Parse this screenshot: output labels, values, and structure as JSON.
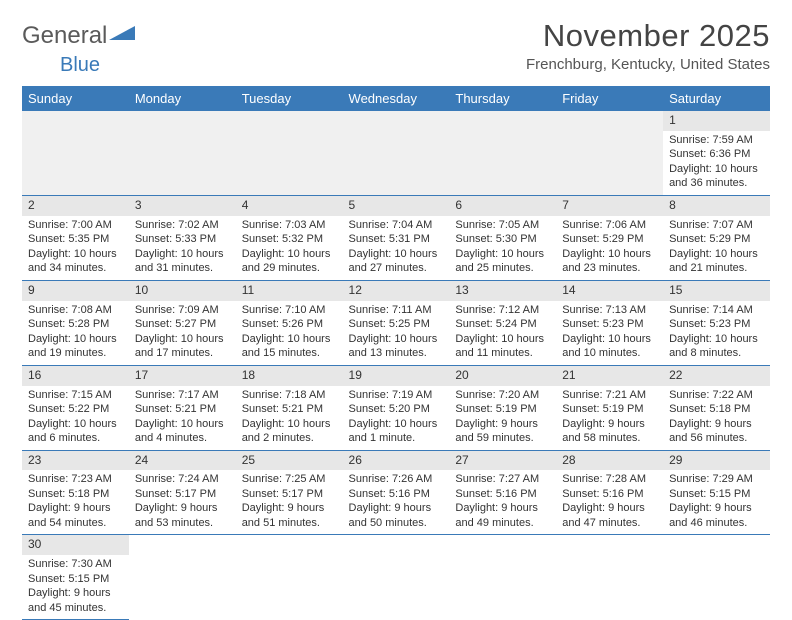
{
  "logo": {
    "text_a": "General",
    "text_b": "Blue",
    "triangle_color": "#3a7ab8"
  },
  "title": "November 2025",
  "location": "Frenchburg, Kentucky, United States",
  "colors": {
    "header_bg": "#3a7ab8",
    "header_fg": "#ffffff",
    "daynum_bg": "#e7e7e7",
    "rule": "#3a7ab8",
    "empty_row_bg": "#f0f0f0"
  },
  "day_headers": [
    "Sunday",
    "Monday",
    "Tuesday",
    "Wednesday",
    "Thursday",
    "Friday",
    "Saturday"
  ],
  "weeks": [
    [
      null,
      null,
      null,
      null,
      null,
      null,
      {
        "n": "1",
        "sr": "Sunrise: 7:59 AM",
        "ss": "Sunset: 6:36 PM",
        "dl": "Daylight: 10 hours and 36 minutes."
      }
    ],
    [
      {
        "n": "2",
        "sr": "Sunrise: 7:00 AM",
        "ss": "Sunset: 5:35 PM",
        "dl": "Daylight: 10 hours and 34 minutes."
      },
      {
        "n": "3",
        "sr": "Sunrise: 7:02 AM",
        "ss": "Sunset: 5:33 PM",
        "dl": "Daylight: 10 hours and 31 minutes."
      },
      {
        "n": "4",
        "sr": "Sunrise: 7:03 AM",
        "ss": "Sunset: 5:32 PM",
        "dl": "Daylight: 10 hours and 29 minutes."
      },
      {
        "n": "5",
        "sr": "Sunrise: 7:04 AM",
        "ss": "Sunset: 5:31 PM",
        "dl": "Daylight: 10 hours and 27 minutes."
      },
      {
        "n": "6",
        "sr": "Sunrise: 7:05 AM",
        "ss": "Sunset: 5:30 PM",
        "dl": "Daylight: 10 hours and 25 minutes."
      },
      {
        "n": "7",
        "sr": "Sunrise: 7:06 AM",
        "ss": "Sunset: 5:29 PM",
        "dl": "Daylight: 10 hours and 23 minutes."
      },
      {
        "n": "8",
        "sr": "Sunrise: 7:07 AM",
        "ss": "Sunset: 5:29 PM",
        "dl": "Daylight: 10 hours and 21 minutes."
      }
    ],
    [
      {
        "n": "9",
        "sr": "Sunrise: 7:08 AM",
        "ss": "Sunset: 5:28 PM",
        "dl": "Daylight: 10 hours and 19 minutes."
      },
      {
        "n": "10",
        "sr": "Sunrise: 7:09 AM",
        "ss": "Sunset: 5:27 PM",
        "dl": "Daylight: 10 hours and 17 minutes."
      },
      {
        "n": "11",
        "sr": "Sunrise: 7:10 AM",
        "ss": "Sunset: 5:26 PM",
        "dl": "Daylight: 10 hours and 15 minutes."
      },
      {
        "n": "12",
        "sr": "Sunrise: 7:11 AM",
        "ss": "Sunset: 5:25 PM",
        "dl": "Daylight: 10 hours and 13 minutes."
      },
      {
        "n": "13",
        "sr": "Sunrise: 7:12 AM",
        "ss": "Sunset: 5:24 PM",
        "dl": "Daylight: 10 hours and 11 minutes."
      },
      {
        "n": "14",
        "sr": "Sunrise: 7:13 AM",
        "ss": "Sunset: 5:23 PM",
        "dl": "Daylight: 10 hours and 10 minutes."
      },
      {
        "n": "15",
        "sr": "Sunrise: 7:14 AM",
        "ss": "Sunset: 5:23 PM",
        "dl": "Daylight: 10 hours and 8 minutes."
      }
    ],
    [
      {
        "n": "16",
        "sr": "Sunrise: 7:15 AM",
        "ss": "Sunset: 5:22 PM",
        "dl": "Daylight: 10 hours and 6 minutes."
      },
      {
        "n": "17",
        "sr": "Sunrise: 7:17 AM",
        "ss": "Sunset: 5:21 PM",
        "dl": "Daylight: 10 hours and 4 minutes."
      },
      {
        "n": "18",
        "sr": "Sunrise: 7:18 AM",
        "ss": "Sunset: 5:21 PM",
        "dl": "Daylight: 10 hours and 2 minutes."
      },
      {
        "n": "19",
        "sr": "Sunrise: 7:19 AM",
        "ss": "Sunset: 5:20 PM",
        "dl": "Daylight: 10 hours and 1 minute."
      },
      {
        "n": "20",
        "sr": "Sunrise: 7:20 AM",
        "ss": "Sunset: 5:19 PM",
        "dl": "Daylight: 9 hours and 59 minutes."
      },
      {
        "n": "21",
        "sr": "Sunrise: 7:21 AM",
        "ss": "Sunset: 5:19 PM",
        "dl": "Daylight: 9 hours and 58 minutes."
      },
      {
        "n": "22",
        "sr": "Sunrise: 7:22 AM",
        "ss": "Sunset: 5:18 PM",
        "dl": "Daylight: 9 hours and 56 minutes."
      }
    ],
    [
      {
        "n": "23",
        "sr": "Sunrise: 7:23 AM",
        "ss": "Sunset: 5:18 PM",
        "dl": "Daylight: 9 hours and 54 minutes."
      },
      {
        "n": "24",
        "sr": "Sunrise: 7:24 AM",
        "ss": "Sunset: 5:17 PM",
        "dl": "Daylight: 9 hours and 53 minutes."
      },
      {
        "n": "25",
        "sr": "Sunrise: 7:25 AM",
        "ss": "Sunset: 5:17 PM",
        "dl": "Daylight: 9 hours and 51 minutes."
      },
      {
        "n": "26",
        "sr": "Sunrise: 7:26 AM",
        "ss": "Sunset: 5:16 PM",
        "dl": "Daylight: 9 hours and 50 minutes."
      },
      {
        "n": "27",
        "sr": "Sunrise: 7:27 AM",
        "ss": "Sunset: 5:16 PM",
        "dl": "Daylight: 9 hours and 49 minutes."
      },
      {
        "n": "28",
        "sr": "Sunrise: 7:28 AM",
        "ss": "Sunset: 5:16 PM",
        "dl": "Daylight: 9 hours and 47 minutes."
      },
      {
        "n": "29",
        "sr": "Sunrise: 7:29 AM",
        "ss": "Sunset: 5:15 PM",
        "dl": "Daylight: 9 hours and 46 minutes."
      }
    ],
    [
      {
        "n": "30",
        "sr": "Sunrise: 7:30 AM",
        "ss": "Sunset: 5:15 PM",
        "dl": "Daylight: 9 hours and 45 minutes."
      },
      null,
      null,
      null,
      null,
      null,
      null
    ]
  ]
}
